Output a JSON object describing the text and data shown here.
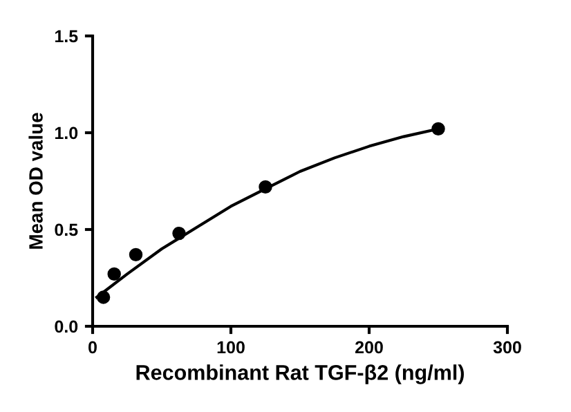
{
  "chart_data": {
    "type": "scatter",
    "xlabel": "Recombinant Rat TGF-β2 (ng/ml)",
    "ylabel": "Mean OD value",
    "series": [
      {
        "color": "#000000",
        "marker": "circle",
        "x": [
          7.8,
          15.6,
          31.25,
          62.5,
          125,
          250
        ],
        "values": [
          0.15,
          0.27,
          0.37,
          0.48,
          0.72,
          1.02
        ]
      },
      {
        "type": "line",
        "color": "#000000",
        "marker": "none",
        "x": [
          3,
          25,
          50,
          75,
          100,
          125,
          150,
          175,
          200,
          225,
          250
        ],
        "values": [
          0.15,
          0.27,
          0.4,
          0.51,
          0.62,
          0.71,
          0.8,
          0.87,
          0.93,
          0.98,
          1.02
        ]
      }
    ],
    "xlim": [
      0,
      300
    ],
    "xticks": [
      0,
      100,
      200,
      300
    ],
    "ylim": [
      0,
      1.5
    ],
    "yticks": [
      {
        "value": 0,
        "label": "0.0"
      },
      {
        "value": 0.5,
        "label": "0.5"
      },
      {
        "value": 1,
        "label": "1.0"
      },
      {
        "value": 1.5,
        "label": "1.5"
      }
    ],
    "grid": false,
    "legend": false
  }
}
